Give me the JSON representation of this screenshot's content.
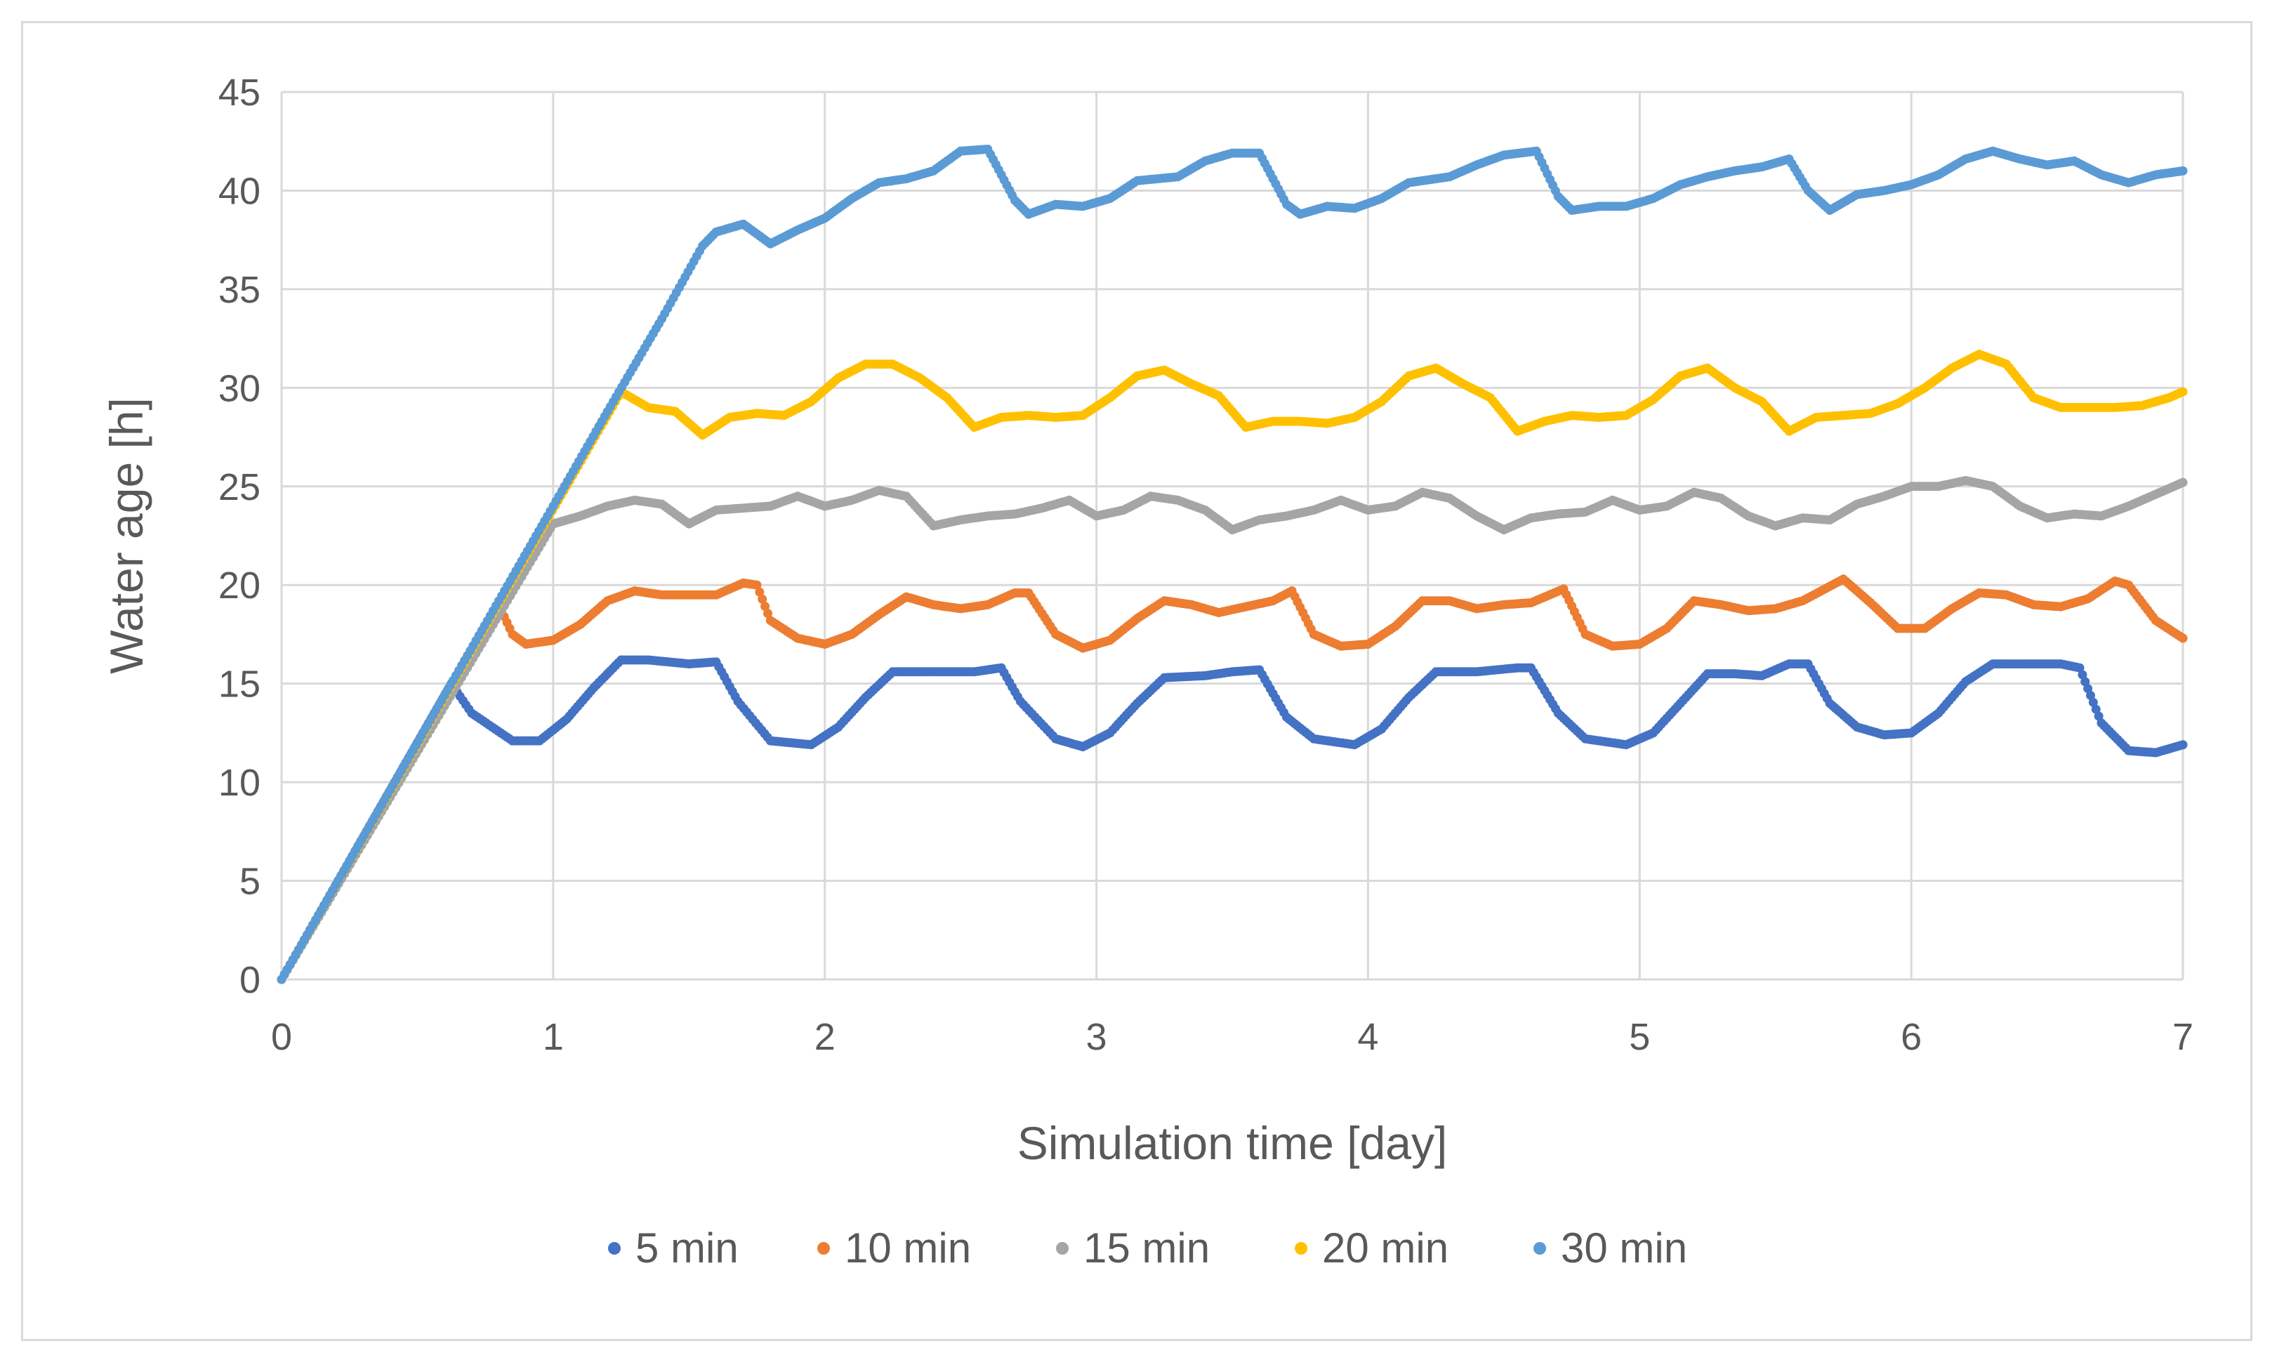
{
  "chart_data": {
    "type": "scatter",
    "title": "",
    "xlabel": "Simulation time [day]",
    "ylabel": "Water age [h]",
    "xlim": [
      0,
      7
    ],
    "ylim": [
      0,
      45
    ],
    "xticks": [
      "0",
      "1",
      "2",
      "3",
      "4",
      "5",
      "6",
      "7"
    ],
    "yticks": [
      "0",
      "5",
      "10",
      "15",
      "20",
      "25",
      "30",
      "35",
      "40",
      "45"
    ],
    "grid": true,
    "legend_position": "bottom",
    "series": [
      {
        "name": "5 min",
        "color": "#4472c4",
        "points": [
          [
            0,
            0
          ],
          [
            0.625,
            15
          ],
          [
            0.7,
            13.5
          ],
          [
            0.85,
            12.1
          ],
          [
            0.95,
            12.1
          ],
          [
            1.05,
            13.2
          ],
          [
            1.15,
            14.8
          ],
          [
            1.25,
            16.2
          ],
          [
            1.35,
            16.2
          ],
          [
            1.5,
            16
          ],
          [
            1.6,
            16.1
          ],
          [
            1.68,
            14.1
          ],
          [
            1.8,
            12.1
          ],
          [
            1.95,
            11.9
          ],
          [
            2.05,
            12.8
          ],
          [
            2.15,
            14.3
          ],
          [
            2.25,
            15.6
          ],
          [
            2.4,
            15.6
          ],
          [
            2.55,
            15.6
          ],
          [
            2.65,
            15.8
          ],
          [
            2.72,
            14.1
          ],
          [
            2.85,
            12.2
          ],
          [
            2.95,
            11.8
          ],
          [
            3.05,
            12.5
          ],
          [
            3.15,
            14
          ],
          [
            3.25,
            15.3
          ],
          [
            3.4,
            15.4
          ],
          [
            3.5,
            15.6
          ],
          [
            3.6,
            15.7
          ],
          [
            3.7,
            13.3
          ],
          [
            3.8,
            12.2
          ],
          [
            3.95,
            11.9
          ],
          [
            4.05,
            12.7
          ],
          [
            4.15,
            14.3
          ],
          [
            4.25,
            15.6
          ],
          [
            4.4,
            15.6
          ],
          [
            4.55,
            15.8
          ],
          [
            4.6,
            15.8
          ],
          [
            4.7,
            13.5
          ],
          [
            4.8,
            12.2
          ],
          [
            4.95,
            11.9
          ],
          [
            5.05,
            12.5
          ],
          [
            5.15,
            14
          ],
          [
            5.25,
            15.5
          ],
          [
            5.35,
            15.5
          ],
          [
            5.45,
            15.4
          ],
          [
            5.55,
            16
          ],
          [
            5.62,
            16
          ],
          [
            5.7,
            14
          ],
          [
            5.8,
            12.8
          ],
          [
            5.9,
            12.4
          ],
          [
            6.0,
            12.5
          ],
          [
            6.1,
            13.5
          ],
          [
            6.2,
            15.1
          ],
          [
            6.3,
            16
          ],
          [
            6.45,
            16
          ],
          [
            6.55,
            16
          ],
          [
            6.62,
            15.8
          ],
          [
            6.7,
            13
          ],
          [
            6.8,
            11.6
          ],
          [
            6.9,
            11.5
          ],
          [
            7.0,
            11.9
          ]
        ]
      },
      {
        "name": "10 min",
        "color": "#ed7d31",
        "points": [
          [
            0,
            0
          ],
          [
            0.8,
            19
          ],
          [
            0.85,
            17.5
          ],
          [
            0.9,
            17
          ],
          [
            1.0,
            17.2
          ],
          [
            1.1,
            18
          ],
          [
            1.2,
            19.2
          ],
          [
            1.3,
            19.7
          ],
          [
            1.4,
            19.5
          ],
          [
            1.5,
            19.5
          ],
          [
            1.6,
            19.5
          ],
          [
            1.7,
            20.1
          ],
          [
            1.75,
            20
          ],
          [
            1.8,
            18.2
          ],
          [
            1.9,
            17.3
          ],
          [
            2.0,
            17
          ],
          [
            2.1,
            17.5
          ],
          [
            2.2,
            18.5
          ],
          [
            2.3,
            19.4
          ],
          [
            2.4,
            19
          ],
          [
            2.5,
            18.8
          ],
          [
            2.6,
            19
          ],
          [
            2.7,
            19.6
          ],
          [
            2.75,
            19.6
          ],
          [
            2.85,
            17.5
          ],
          [
            2.95,
            16.8
          ],
          [
            3.05,
            17.2
          ],
          [
            3.15,
            18.3
          ],
          [
            3.25,
            19.2
          ],
          [
            3.35,
            19
          ],
          [
            3.45,
            18.6
          ],
          [
            3.55,
            18.9
          ],
          [
            3.65,
            19.2
          ],
          [
            3.72,
            19.7
          ],
          [
            3.8,
            17.5
          ],
          [
            3.9,
            16.9
          ],
          [
            4.0,
            17
          ],
          [
            4.1,
            17.9
          ],
          [
            4.2,
            19.2
          ],
          [
            4.3,
            19.2
          ],
          [
            4.4,
            18.8
          ],
          [
            4.5,
            19
          ],
          [
            4.6,
            19.1
          ],
          [
            4.72,
            19.8
          ],
          [
            4.8,
            17.5
          ],
          [
            4.9,
            16.9
          ],
          [
            5.0,
            17
          ],
          [
            5.1,
            17.8
          ],
          [
            5.2,
            19.2
          ],
          [
            5.3,
            19
          ],
          [
            5.4,
            18.7
          ],
          [
            5.5,
            18.8
          ],
          [
            5.6,
            19.2
          ],
          [
            5.75,
            20.3
          ],
          [
            5.85,
            19.1
          ],
          [
            5.95,
            17.8
          ],
          [
            6.05,
            17.8
          ],
          [
            6.15,
            18.8
          ],
          [
            6.25,
            19.6
          ],
          [
            6.35,
            19.5
          ],
          [
            6.45,
            19
          ],
          [
            6.55,
            18.9
          ],
          [
            6.65,
            19.3
          ],
          [
            6.75,
            20.2
          ],
          [
            6.8,
            20
          ],
          [
            6.9,
            18.2
          ],
          [
            7.0,
            17.3
          ]
        ]
      },
      {
        "name": "15 min",
        "color": "#a5a5a5",
        "points": [
          [
            0,
            0
          ],
          [
            1.0,
            23.1
          ],
          [
            1.1,
            23.5
          ],
          [
            1.2,
            24
          ],
          [
            1.3,
            24.3
          ],
          [
            1.4,
            24.1
          ],
          [
            1.5,
            23.1
          ],
          [
            1.6,
            23.8
          ],
          [
            1.7,
            23.9
          ],
          [
            1.8,
            24
          ],
          [
            1.9,
            24.5
          ],
          [
            2.0,
            24
          ],
          [
            2.1,
            24.3
          ],
          [
            2.2,
            24.8
          ],
          [
            2.3,
            24.5
          ],
          [
            2.4,
            23
          ],
          [
            2.5,
            23.3
          ],
          [
            2.6,
            23.5
          ],
          [
            2.7,
            23.6
          ],
          [
            2.8,
            23.9
          ],
          [
            2.9,
            24.3
          ],
          [
            3.0,
            23.5
          ],
          [
            3.1,
            23.8
          ],
          [
            3.2,
            24.5
          ],
          [
            3.3,
            24.3
          ],
          [
            3.4,
            23.8
          ],
          [
            3.5,
            22.8
          ],
          [
            3.6,
            23.3
          ],
          [
            3.7,
            23.5
          ],
          [
            3.8,
            23.8
          ],
          [
            3.9,
            24.3
          ],
          [
            4.0,
            23.8
          ],
          [
            4.1,
            24
          ],
          [
            4.2,
            24.7
          ],
          [
            4.3,
            24.4
          ],
          [
            4.4,
            23.5
          ],
          [
            4.5,
            22.8
          ],
          [
            4.6,
            23.4
          ],
          [
            4.7,
            23.6
          ],
          [
            4.8,
            23.7
          ],
          [
            4.9,
            24.3
          ],
          [
            5.0,
            23.8
          ],
          [
            5.1,
            24
          ],
          [
            5.2,
            24.7
          ],
          [
            5.3,
            24.4
          ],
          [
            5.4,
            23.5
          ],
          [
            5.5,
            23
          ],
          [
            5.6,
            23.4
          ],
          [
            5.7,
            23.3
          ],
          [
            5.8,
            24.1
          ],
          [
            5.9,
            24.5
          ],
          [
            6.0,
            25
          ],
          [
            6.1,
            25
          ],
          [
            6.2,
            25.3
          ],
          [
            6.3,
            25
          ],
          [
            6.4,
            24
          ],
          [
            6.5,
            23.4
          ],
          [
            6.6,
            23.6
          ],
          [
            6.7,
            23.5
          ],
          [
            6.8,
            24
          ],
          [
            6.9,
            24.6
          ],
          [
            7.0,
            25.2
          ]
        ]
      },
      {
        "name": "20 min",
        "color": "#ffc000",
        "points": [
          [
            0,
            0
          ],
          [
            1.25,
            29.8
          ],
          [
            1.35,
            29
          ],
          [
            1.45,
            28.8
          ],
          [
            1.55,
            27.6
          ],
          [
            1.65,
            28.5
          ],
          [
            1.75,
            28.7
          ],
          [
            1.85,
            28.6
          ],
          [
            1.95,
            29.3
          ],
          [
            2.05,
            30.5
          ],
          [
            2.15,
            31.2
          ],
          [
            2.25,
            31.2
          ],
          [
            2.35,
            30.5
          ],
          [
            2.45,
            29.5
          ],
          [
            2.55,
            28
          ],
          [
            2.65,
            28.5
          ],
          [
            2.75,
            28.6
          ],
          [
            2.85,
            28.5
          ],
          [
            2.95,
            28.6
          ],
          [
            3.05,
            29.5
          ],
          [
            3.15,
            30.6
          ],
          [
            3.25,
            30.9
          ],
          [
            3.35,
            30.2
          ],
          [
            3.45,
            29.6
          ],
          [
            3.55,
            28
          ],
          [
            3.65,
            28.3
          ],
          [
            3.75,
            28.3
          ],
          [
            3.85,
            28.2
          ],
          [
            3.95,
            28.5
          ],
          [
            4.05,
            29.3
          ],
          [
            4.15,
            30.6
          ],
          [
            4.25,
            31
          ],
          [
            4.35,
            30.2
          ],
          [
            4.45,
            29.5
          ],
          [
            4.55,
            27.8
          ],
          [
            4.65,
            28.3
          ],
          [
            4.75,
            28.6
          ],
          [
            4.85,
            28.5
          ],
          [
            4.95,
            28.6
          ],
          [
            5.05,
            29.4
          ],
          [
            5.15,
            30.6
          ],
          [
            5.25,
            31
          ],
          [
            5.35,
            30
          ],
          [
            5.45,
            29.3
          ],
          [
            5.55,
            27.8
          ],
          [
            5.65,
            28.5
          ],
          [
            5.75,
            28.6
          ],
          [
            5.85,
            28.7
          ],
          [
            5.95,
            29.2
          ],
          [
            6.05,
            30
          ],
          [
            6.15,
            31
          ],
          [
            6.25,
            31.7
          ],
          [
            6.35,
            31.2
          ],
          [
            6.45,
            29.5
          ],
          [
            6.55,
            29
          ],
          [
            6.65,
            29
          ],
          [
            6.75,
            29
          ],
          [
            6.85,
            29.1
          ],
          [
            6.95,
            29.5
          ],
          [
            7.0,
            29.8
          ]
        ]
      },
      {
        "name": "30 min",
        "color": "#5b9bd5",
        "points": [
          [
            0,
            0
          ],
          [
            1.0,
            24
          ],
          [
            1.2,
            28.8
          ],
          [
            1.4,
            33.5
          ],
          [
            1.55,
            37.2
          ],
          [
            1.6,
            37.9
          ],
          [
            1.7,
            38.3
          ],
          [
            1.8,
            37.3
          ],
          [
            1.9,
            38
          ],
          [
            2.0,
            38.6
          ],
          [
            2.1,
            39.6
          ],
          [
            2.2,
            40.4
          ],
          [
            2.3,
            40.6
          ],
          [
            2.4,
            41
          ],
          [
            2.5,
            42
          ],
          [
            2.6,
            42.1
          ],
          [
            2.7,
            39.5
          ],
          [
            2.75,
            38.8
          ],
          [
            2.85,
            39.3
          ],
          [
            2.95,
            39.2
          ],
          [
            3.05,
            39.6
          ],
          [
            3.15,
            40.5
          ],
          [
            3.3,
            40.7
          ],
          [
            3.4,
            41.5
          ],
          [
            3.5,
            41.9
          ],
          [
            3.6,
            41.9
          ],
          [
            3.7,
            39.3
          ],
          [
            3.75,
            38.8
          ],
          [
            3.85,
            39.2
          ],
          [
            3.95,
            39.1
          ],
          [
            4.05,
            39.6
          ],
          [
            4.15,
            40.4
          ],
          [
            4.3,
            40.7
          ],
          [
            4.4,
            41.3
          ],
          [
            4.5,
            41.8
          ],
          [
            4.62,
            42
          ],
          [
            4.7,
            39.7
          ],
          [
            4.75,
            39
          ],
          [
            4.85,
            39.2
          ],
          [
            4.95,
            39.2
          ],
          [
            5.05,
            39.6
          ],
          [
            5.15,
            40.3
          ],
          [
            5.25,
            40.7
          ],
          [
            5.35,
            41
          ],
          [
            5.45,
            41.2
          ],
          [
            5.55,
            41.6
          ],
          [
            5.62,
            40
          ],
          [
            5.7,
            39
          ],
          [
            5.8,
            39.8
          ],
          [
            5.9,
            40
          ],
          [
            6.0,
            40.3
          ],
          [
            6.1,
            40.8
          ],
          [
            6.2,
            41.6
          ],
          [
            6.3,
            42
          ],
          [
            6.4,
            41.6
          ],
          [
            6.5,
            41.3
          ],
          [
            6.6,
            41.5
          ],
          [
            6.7,
            40.8
          ],
          [
            6.8,
            40.4
          ],
          [
            6.9,
            40.8
          ],
          [
            7.0,
            41
          ]
        ]
      }
    ]
  }
}
